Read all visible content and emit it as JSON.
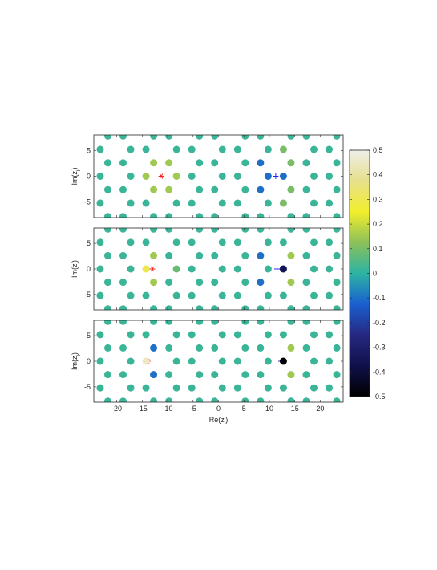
{
  "chart_data": [
    {
      "type": "scatter",
      "x": [
        -21.75,
        -18.75,
        -12.75,
        -9.75,
        -3.75,
        -0.75,
        5.25,
        8.25,
        14.25,
        17.25,
        23.25,
        -23.25,
        -17.25,
        -14.25,
        -8.25,
        -5.25,
        0.75,
        3.75,
        9.75,
        12.75,
        18.75,
        21.75,
        -21.75,
        -18.75,
        -12.75,
        -9.75,
        -3.75,
        -0.75,
        5.25,
        8.25,
        14.25,
        17.25,
        23.25,
        -23.25,
        -17.25,
        -14.25,
        -8.25,
        -5.25,
        0.75,
        3.75,
        9.75,
        12.75,
        18.75,
        21.75,
        -21.75,
        -18.75,
        -12.75,
        -9.75,
        -3.75,
        -0.75,
        5.25,
        8.25,
        14.25,
        17.25,
        23.25,
        -23.25,
        -17.25,
        -14.25,
        -8.25,
        -5.25,
        0.75,
        3.75,
        9.75,
        12.75,
        18.75,
        21.75,
        -21.75,
        -18.75,
        -12.75,
        -9.75,
        -3.75,
        -0.75,
        5.25,
        8.25,
        14.25,
        17.25,
        23.25
      ],
      "y": [
        7.8,
        7.8,
        7.8,
        7.8,
        7.8,
        7.8,
        7.8,
        7.8,
        7.8,
        7.8,
        7.8,
        5.2,
        5.2,
        5.2,
        5.2,
        5.2,
        5.2,
        5.2,
        5.2,
        5.2,
        5.2,
        5.2,
        2.6,
        2.6,
        2.6,
        2.6,
        2.6,
        2.6,
        2.6,
        2.6,
        2.6,
        2.6,
        2.6,
        0,
        0,
        0,
        0,
        0,
        0,
        0,
        0,
        0,
        0,
        0,
        -2.6,
        -2.6,
        -2.6,
        -2.6,
        -2.6,
        -2.6,
        -2.6,
        -2.6,
        -2.6,
        -2.6,
        -2.6,
        -5.2,
        -5.2,
        -5.2,
        -5.2,
        -5.2,
        -5.2,
        -5.2,
        -5.2,
        -5.2,
        -5.2,
        -5.2,
        -7.8,
        -7.8,
        -7.8,
        -7.8,
        -7.8,
        -7.8,
        -7.8,
        -7.8,
        -7.8,
        -7.8,
        -7.8
      ],
      "values": [
        0.02,
        0.02,
        0.02,
        0.02,
        0.02,
        0.02,
        0.02,
        0.02,
        0.02,
        0.02,
        0.02,
        0.02,
        0.02,
        0.02,
        0.02,
        0.02,
        0.02,
        0.02,
        0.02,
        0.1,
        0.02,
        0.02,
        0.02,
        0.02,
        0.15,
        0.15,
        0.02,
        0.02,
        0.02,
        -0.1,
        0.1,
        0.02,
        0.02,
        0.02,
        0.02,
        0.15,
        0.15,
        0.02,
        0.02,
        0.02,
        -0.1,
        -0.1,
        0.02,
        0.02,
        0.02,
        0.02,
        0.15,
        0.15,
        0.02,
        0.02,
        0.02,
        -0.1,
        0.1,
        0.02,
        0.02,
        0.02,
        0.02,
        0.02,
        0.02,
        0.02,
        0.02,
        0.02,
        0.02,
        0.1,
        0.02,
        0.02,
        0.02,
        0.02,
        0.02,
        0.02,
        0.02,
        0.02,
        0.02,
        0.02,
        0.02,
        0.02,
        0.02
      ],
      "markers": [
        {
          "x": -11.25,
          "y": 0,
          "symbol": "star",
          "color": "#ff2020"
        },
        {
          "x": 11.25,
          "y": 0,
          "symbol": "plus",
          "color": "#2020ff"
        }
      ],
      "xlim": [
        -24.5,
        24.5
      ],
      "ylim": [
        -8,
        8
      ],
      "xticks": [
        -20,
        -15,
        -10,
        -5,
        0,
        5,
        10,
        15,
        20
      ],
      "yticks": [
        -5,
        0,
        5
      ],
      "show_xtick_labels": false,
      "ylabel": [
        "Im(z",
        "l",
        ")"
      ]
    },
    {
      "type": "scatter",
      "x": [
        -21.75,
        -18.75,
        -12.75,
        -9.75,
        -3.75,
        -0.75,
        5.25,
        8.25,
        14.25,
        17.25,
        23.25,
        -23.25,
        -17.25,
        -14.25,
        -8.25,
        -5.25,
        0.75,
        3.75,
        9.75,
        12.75,
        18.75,
        21.75,
        -21.75,
        -18.75,
        -12.75,
        -9.75,
        -3.75,
        -0.75,
        5.25,
        8.25,
        14.25,
        17.25,
        23.25,
        -23.25,
        -17.25,
        -14.25,
        -8.25,
        -5.25,
        0.75,
        3.75,
        9.75,
        12.75,
        18.75,
        21.75,
        -21.75,
        -18.75,
        -12.75,
        -9.75,
        -3.75,
        -0.75,
        5.25,
        8.25,
        14.25,
        17.25,
        23.25,
        -23.25,
        -17.25,
        -14.25,
        -8.25,
        -5.25,
        0.75,
        3.75,
        9.75,
        12.75,
        18.75,
        21.75,
        -21.75,
        -18.75,
        -12.75,
        -9.75,
        -3.75,
        -0.75,
        5.25,
        8.25,
        14.25,
        17.25,
        23.25
      ],
      "y": [
        7.8,
        7.8,
        7.8,
        7.8,
        7.8,
        7.8,
        7.8,
        7.8,
        7.8,
        7.8,
        7.8,
        5.2,
        5.2,
        5.2,
        5.2,
        5.2,
        5.2,
        5.2,
        5.2,
        5.2,
        5.2,
        5.2,
        2.6,
        2.6,
        2.6,
        2.6,
        2.6,
        2.6,
        2.6,
        2.6,
        2.6,
        2.6,
        2.6,
        0,
        0,
        0,
        0,
        0,
        0,
        0,
        0,
        0,
        0,
        0,
        -2.6,
        -2.6,
        -2.6,
        -2.6,
        -2.6,
        -2.6,
        -2.6,
        -2.6,
        -2.6,
        -2.6,
        -2.6,
        -5.2,
        -5.2,
        -5.2,
        -5.2,
        -5.2,
        -5.2,
        -5.2,
        -5.2,
        -5.2,
        -5.2,
        -5.2,
        -7.8,
        -7.8,
        -7.8,
        -7.8,
        -7.8,
        -7.8,
        -7.8,
        -7.8,
        -7.8,
        -7.8,
        -7.8
      ],
      "values": [
        0.02,
        0.02,
        0.02,
        0.02,
        0.02,
        0.02,
        0.02,
        0.02,
        0.02,
        0.02,
        0.02,
        0.02,
        0.02,
        0.02,
        0.02,
        0.02,
        0.02,
        0.02,
        0.02,
        0.02,
        0.02,
        0.02,
        0.02,
        0.02,
        0.15,
        0.02,
        0.02,
        0.02,
        0.02,
        -0.1,
        0.15,
        0.02,
        0.02,
        0.02,
        0.02,
        0.3,
        0.08,
        0.02,
        0.02,
        0.02,
        0.02,
        -0.35,
        0.02,
        0.02,
        0.02,
        0.02,
        0.15,
        0.02,
        0.02,
        0.02,
        0.02,
        -0.1,
        0.15,
        0.02,
        0.02,
        0.02,
        0.02,
        0.02,
        0.02,
        0.02,
        0.02,
        0.02,
        0.02,
        0.02,
        0.02,
        0.02,
        0.02,
        0.02,
        0.02,
        0.02,
        0.02,
        0.02,
        0.02,
        0.02,
        0.02,
        0.02,
        0.02
      ],
      "markers": [
        {
          "x": -13.0,
          "y": 0,
          "symbol": "star",
          "color": "#ff2020"
        },
        {
          "x": 11.5,
          "y": 0,
          "symbol": "plus",
          "color": "#2020ff"
        }
      ],
      "xlim": [
        -24.5,
        24.5
      ],
      "ylim": [
        -8,
        8
      ],
      "xticks": [
        -20,
        -15,
        -10,
        -5,
        0,
        5,
        10,
        15,
        20
      ],
      "yticks": [
        -5,
        0,
        5
      ],
      "show_xtick_labels": false,
      "ylabel": [
        "Im(z",
        "l",
        ")"
      ]
    },
    {
      "type": "scatter",
      "x": [
        -21.75,
        -18.75,
        -12.75,
        -9.75,
        -3.75,
        -0.75,
        5.25,
        8.25,
        14.25,
        17.25,
        23.25,
        -23.25,
        -17.25,
        -14.25,
        -8.25,
        -5.25,
        0.75,
        3.75,
        9.75,
        12.75,
        18.75,
        21.75,
        -21.75,
        -18.75,
        -12.75,
        -9.75,
        -3.75,
        -0.75,
        5.25,
        8.25,
        14.25,
        17.25,
        23.25,
        -23.25,
        -17.25,
        -14.25,
        -8.25,
        -5.25,
        0.75,
        3.75,
        9.75,
        12.75,
        18.75,
        21.75,
        -21.75,
        -18.75,
        -12.75,
        -9.75,
        -3.75,
        -0.75,
        5.25,
        8.25,
        14.25,
        17.25,
        23.25,
        -23.25,
        -17.25,
        -14.25,
        -8.25,
        -5.25,
        0.75,
        3.75,
        9.75,
        12.75,
        18.75,
        21.75,
        -21.75,
        -18.75,
        -12.75,
        -9.75,
        -3.75,
        -0.75,
        5.25,
        8.25,
        14.25,
        17.25,
        23.25
      ],
      "y": [
        7.8,
        7.8,
        7.8,
        7.8,
        7.8,
        7.8,
        7.8,
        7.8,
        7.8,
        7.8,
        7.8,
        5.2,
        5.2,
        5.2,
        5.2,
        5.2,
        5.2,
        5.2,
        5.2,
        5.2,
        5.2,
        5.2,
        2.6,
        2.6,
        2.6,
        2.6,
        2.6,
        2.6,
        2.6,
        2.6,
        2.6,
        2.6,
        2.6,
        0,
        0,
        0,
        0,
        0,
        0,
        0,
        0,
        0,
        0,
        0,
        -2.6,
        -2.6,
        -2.6,
        -2.6,
        -2.6,
        -2.6,
        -2.6,
        -2.6,
        -2.6,
        -2.6,
        -2.6,
        -5.2,
        -5.2,
        -5.2,
        -5.2,
        -5.2,
        -5.2,
        -5.2,
        -5.2,
        -5.2,
        -5.2,
        -5.2,
        -7.8,
        -7.8,
        -7.8,
        -7.8,
        -7.8,
        -7.8,
        -7.8,
        -7.8,
        -7.8,
        -7.8,
        -7.8
      ],
      "values": [
        0.02,
        0.02,
        0.02,
        0.02,
        0.02,
        0.02,
        0.02,
        0.02,
        0.02,
        0.02,
        0.02,
        0.02,
        0.02,
        0.02,
        0.02,
        0.02,
        0.02,
        0.02,
        0.02,
        0.02,
        0.02,
        0.02,
        0.02,
        0.02,
        -0.1,
        0.02,
        0.02,
        0.02,
        0.02,
        0.02,
        0.15,
        0.02,
        0.02,
        0.02,
        0.02,
        0.45,
        0.02,
        0.02,
        0.02,
        0.02,
        0.02,
        -0.5,
        0.02,
        0.02,
        0.02,
        0.02,
        -0.1,
        0.02,
        0.02,
        0.02,
        0.02,
        0.02,
        0.15,
        0.02,
        0.02,
        0.02,
        0.02,
        0.02,
        0.02,
        0.02,
        0.02,
        0.02,
        0.02,
        0.02,
        0.02,
        0.02,
        0.02,
        0.02,
        0.02,
        0.02,
        0.02,
        0.02,
        0.02,
        0.02,
        0.02,
        0.02,
        0.02
      ],
      "markers": [
        {
          "x": -13.9,
          "y": 0,
          "symbol": "star",
          "color": "#ff2020"
        },
        {
          "x": 12.3,
          "y": 0,
          "symbol": "plus",
          "color": "#2020ff"
        }
      ],
      "xlim": [
        -24.5,
        24.5
      ],
      "ylim": [
        -8,
        8
      ],
      "xticks": [
        -20,
        -15,
        -10,
        -5,
        0,
        5,
        10,
        15,
        20
      ],
      "yticks": [
        -5,
        0,
        5
      ],
      "show_xtick_labels": true,
      "ylabel": [
        "Im(z",
        "l",
        ")"
      ],
      "xlabel": [
        "Re(z",
        "l",
        ")"
      ]
    },
    {
      "type": "colorbar",
      "ylim": [
        -0.5,
        0.5
      ],
      "yticks": [
        -0.5,
        -0.4,
        -0.3,
        -0.2,
        -0.1,
        0,
        0.1,
        0.2,
        0.3,
        0.4,
        0.5
      ],
      "colormap": [
        "#000000",
        "#10104a",
        "#262880",
        "#1a5fcf",
        "#2cb3a3",
        "#8cc05a",
        "#f2ee2c",
        "#e6e08c",
        "#efeeea"
      ]
    }
  ]
}
